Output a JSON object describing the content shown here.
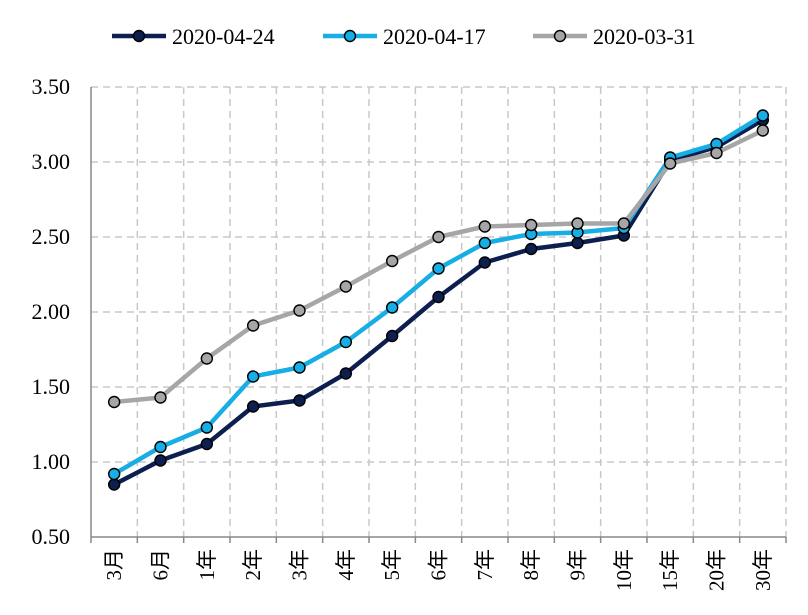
{
  "chart_data": {
    "type": "line",
    "categories": [
      "3月",
      "6月",
      "1年",
      "2年",
      "3年",
      "4年",
      "5年",
      "6年",
      "7年",
      "8年",
      "9年",
      "10年",
      "15年",
      "20年",
      "30年"
    ],
    "ylim": [
      0.5,
      3.5
    ],
    "yticks": [
      "0.50",
      "1.00",
      "1.50",
      "2.00",
      "2.50",
      "3.00",
      "3.50"
    ],
    "grid": true,
    "legend_position": "top",
    "series": [
      {
        "name": "2020-04-24",
        "color": "#0d1f4f",
        "values": [
          0.85,
          1.01,
          1.12,
          1.37,
          1.41,
          1.59,
          1.84,
          2.1,
          2.33,
          2.42,
          2.46,
          2.51,
          3.01,
          3.1,
          3.28
        ]
      },
      {
        "name": "2020-04-17",
        "color": "#17aee6",
        "values": [
          0.92,
          1.1,
          1.23,
          1.57,
          1.63,
          1.8,
          2.03,
          2.29,
          2.46,
          2.52,
          2.53,
          2.56,
          3.03,
          3.12,
          3.31
        ]
      },
      {
        "name": "2020-03-31",
        "color": "#a6a6a6",
        "values": [
          1.4,
          1.43,
          1.69,
          1.91,
          2.01,
          2.17,
          2.34,
          2.5,
          2.57,
          2.58,
          2.59,
          2.59,
          2.99,
          3.06,
          3.21
        ]
      }
    ]
  }
}
